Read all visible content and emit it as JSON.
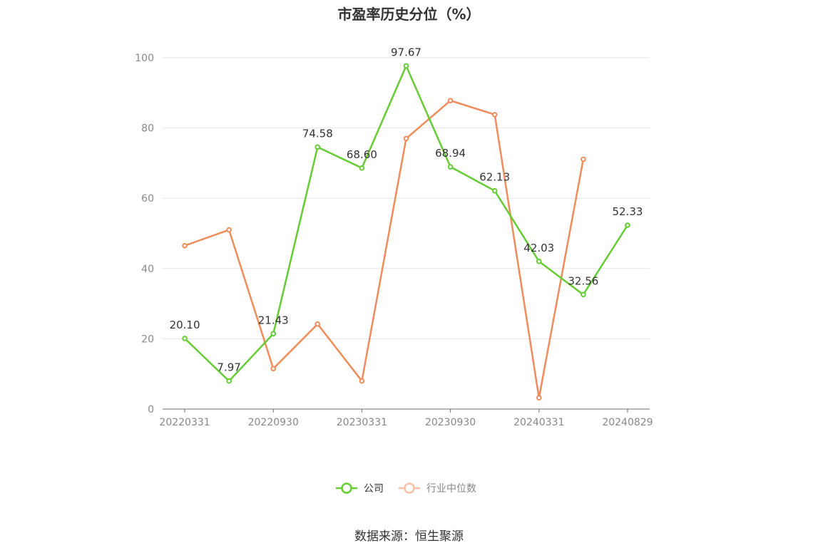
{
  "chart_data": {
    "type": "line",
    "title": "市盈率历史分位（%）",
    "x_tick_labels": [
      "20220331",
      "20220930",
      "20230331",
      "20230930",
      "20240331",
      "20240829"
    ],
    "ylim": [
      0,
      100
    ],
    "y_ticks": [
      0,
      20,
      40,
      60,
      80,
      100
    ],
    "grid": true,
    "legend_position": "bottom",
    "series": [
      {
        "name": "公司",
        "color": "#66cc33",
        "values": [
          20.1,
          7.97,
          21.43,
          74.58,
          68.6,
          97.67,
          68.94,
          62.13,
          42.03,
          32.56,
          52.33
        ],
        "labels": [
          "20.10",
          "7.97",
          "21.43",
          "74.58",
          "68.60",
          "97.67",
          "68.94",
          "62.13",
          "42.03",
          "32.56",
          "52.33"
        ]
      },
      {
        "name": "行业中位数",
        "color": "#f08c5a",
        "values": [
          46.5,
          51.0,
          11.5,
          24.2,
          8.0,
          77.0,
          87.8,
          83.8,
          3.2,
          71.1,
          null
        ]
      }
    ]
  },
  "source": "数据来源：恒生聚源"
}
